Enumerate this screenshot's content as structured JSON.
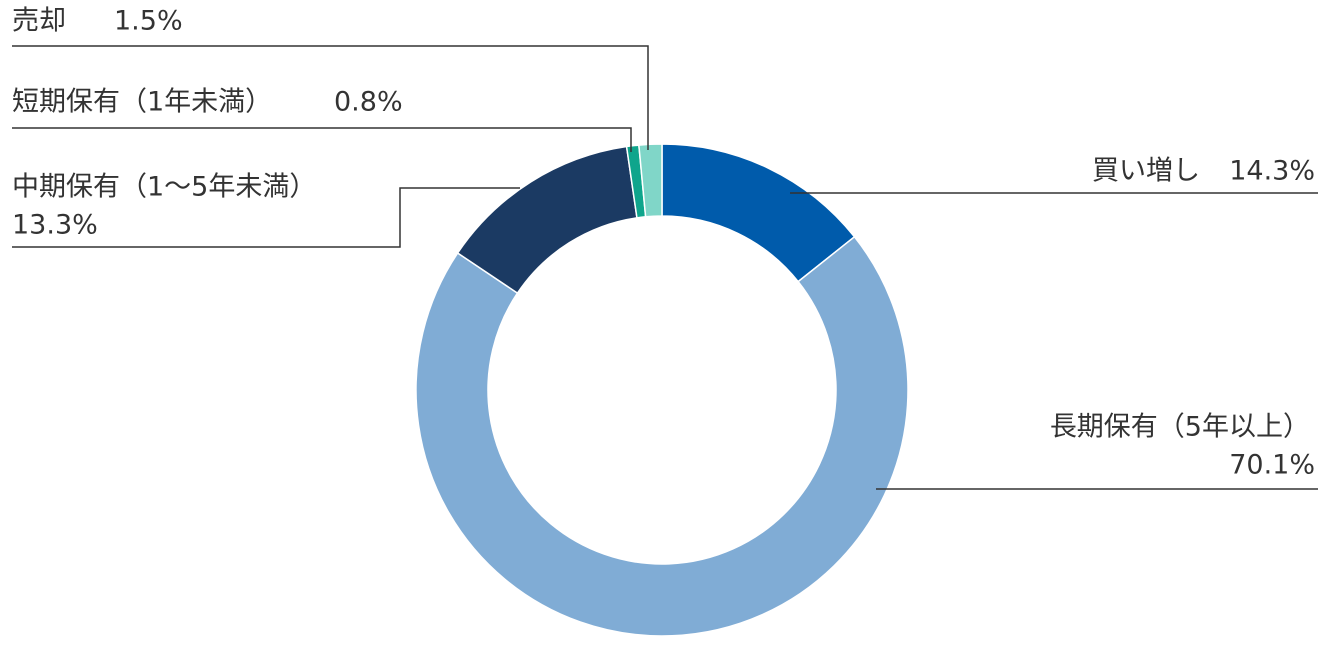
{
  "chart_data": {
    "type": "donut",
    "categories": [
      "買い増し",
      "長期保有（5年以上）",
      "中期保有（1〜5年未満）",
      "短期保有（1年未満）",
      "売却"
    ],
    "values": [
      14.3,
      70.1,
      13.3,
      0.8,
      1.5
    ],
    "value_labels": [
      "14.3%",
      "70.1%",
      "13.3%",
      "0.8%",
      "1.5%"
    ],
    "colors": [
      "#005bab",
      "#80acd5",
      "#1b3a63",
      "#0fa58c",
      "#80d6c8"
    ]
  }
}
